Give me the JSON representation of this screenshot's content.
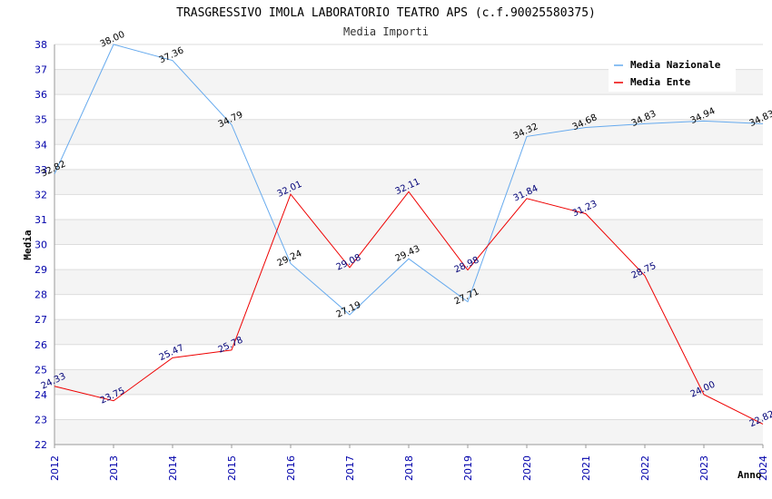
{
  "chart_data": {
    "type": "line",
    "title": "TRASGRESSIVO IMOLA LABORATORIO TEATRO APS (c.f.90025580375)",
    "subtitle": "Media Importi",
    "xlabel": "Anno",
    "ylabel": "Media",
    "ylim": [
      22,
      38
    ],
    "yticks": [
      22,
      23,
      24,
      25,
      26,
      27,
      28,
      29,
      30,
      31,
      32,
      33,
      34,
      35,
      36,
      37,
      38
    ],
    "x": [
      "2012",
      "2013",
      "2014",
      "2015",
      "2016",
      "2017",
      "2018",
      "2019",
      "2020",
      "2021",
      "2022",
      "2023",
      "2024"
    ],
    "grid": true,
    "legend_position": "top-right",
    "series": [
      {
        "name": "Media Nazionale",
        "color": "#66aaee",
        "label_color": "#000000",
        "values": [
          32.82,
          38.0,
          37.36,
          34.79,
          29.24,
          27.19,
          29.43,
          27.71,
          34.32,
          34.68,
          34.83,
          34.94,
          34.83
        ],
        "labels": [
          "32.82",
          "38.00",
          "37.36",
          "34.79",
          "29.24",
          "27.19",
          "29.43",
          "27.71",
          "34.32",
          "34.68",
          "34.83",
          "34.94",
          "34.83"
        ]
      },
      {
        "name": "Media Ente",
        "color": "#ee0000",
        "label_color": "#000077",
        "values": [
          24.33,
          23.75,
          25.47,
          25.78,
          32.01,
          29.08,
          32.11,
          28.98,
          31.84,
          31.23,
          28.75,
          24.0,
          22.82
        ],
        "labels": [
          "24.33",
          "23.75",
          "25.47",
          "25.78",
          "32.01",
          "29.08",
          "32.11",
          "28.98",
          "31.84",
          "31.23",
          "28.75",
          "24.00",
          "22.82"
        ]
      }
    ]
  }
}
